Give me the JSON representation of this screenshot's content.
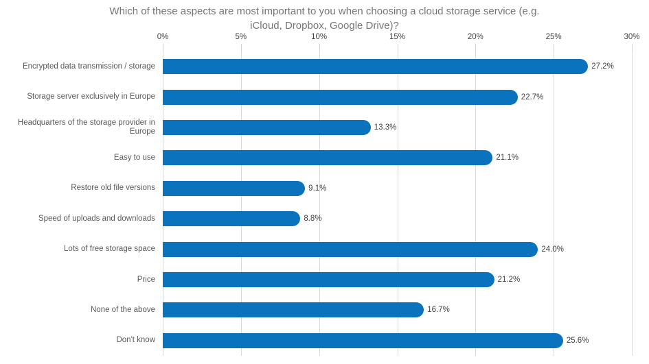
{
  "chart_data": {
    "type": "bar",
    "orientation": "horizontal",
    "title_lines": [
      "Which of these aspects are most important to you when choosing a cloud storage service (e.g.",
      "iCloud, Dropbox, Google Drive)?"
    ],
    "categories": [
      "Encrypted data transmission / storage",
      "Storage server exclusively in Europe",
      "Headquarters of the storage provider in Europe",
      "Easy to use",
      "Restore old file versions",
      "Speed of uploads and downloads",
      "Lots of free storage space",
      "Price",
      "None of the above",
      "Don't know"
    ],
    "values": [
      27.2,
      22.7,
      13.3,
      21.1,
      9.1,
      8.8,
      24.0,
      21.2,
      16.7,
      25.6
    ],
    "value_labels": [
      "27.2%",
      "22.7%",
      "13.3%",
      "21.1%",
      "9.1%",
      "8.8%",
      "24.0%",
      "21.2%",
      "16.7%",
      "25.6%"
    ],
    "x_ticks": [
      "0%",
      "5%",
      "10%",
      "15%",
      "20%",
      "25%",
      "30%"
    ],
    "x_tick_values": [
      0,
      5,
      10,
      15,
      20,
      25,
      30
    ],
    "xlim": [
      0,
      30
    ],
    "xlabel": "",
    "ylabel": "",
    "axis_position": "top",
    "grid": "vertical",
    "legend": "none",
    "colors": {
      "bar": "#0b72be",
      "gridline": "#d9d9d9",
      "tick": "#d0d0d0",
      "title_text": "#757575",
      "category_text": "#595959",
      "value_text": "#404040",
      "axis_text": "#404040",
      "background": "#ffffff"
    }
  }
}
